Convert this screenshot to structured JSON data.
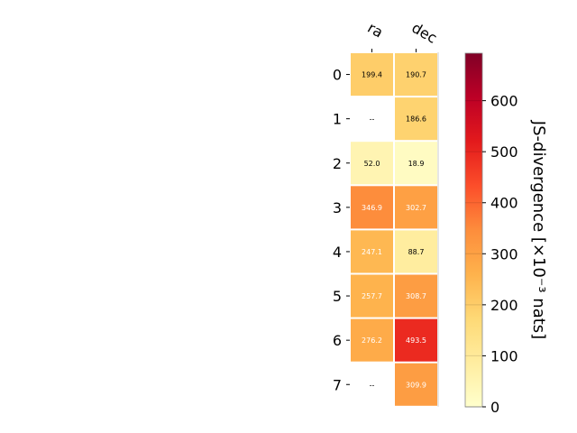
{
  "chart_data": {
    "type": "heatmap",
    "columns": [
      "ra",
      "dec"
    ],
    "rows": [
      "0",
      "1",
      "2",
      "3",
      "4",
      "5",
      "6",
      "7"
    ],
    "values": [
      [
        199.4,
        190.7
      ],
      [
        null,
        186.6
      ],
      [
        52.0,
        18.9
      ],
      [
        346.9,
        302.7
      ],
      [
        247.1,
        88.7
      ],
      [
        257.7,
        308.7
      ],
      [
        276.2,
        493.5
      ],
      [
        null,
        309.9
      ]
    ],
    "cell_labels": [
      [
        "199.4",
        "190.7"
      ],
      [
        "--",
        "186.6"
      ],
      [
        "52.0",
        "18.9"
      ],
      [
        "346.9",
        "302.7"
      ],
      [
        "247.1",
        "88.7"
      ],
      [
        "257.7",
        "308.7"
      ],
      [
        "276.2",
        "493.5"
      ],
      [
        "--",
        "309.9"
      ]
    ],
    "colorbar": {
      "label": "JS-divergence [×10⁻³ nats]",
      "min": 0,
      "max": 693,
      "ticks": [
        "0",
        "100",
        "200",
        "300",
        "400",
        "500",
        "600"
      ],
      "tick_values": [
        0,
        100,
        200,
        300,
        400,
        500,
        600
      ],
      "colormap": "YlOrRd"
    }
  }
}
